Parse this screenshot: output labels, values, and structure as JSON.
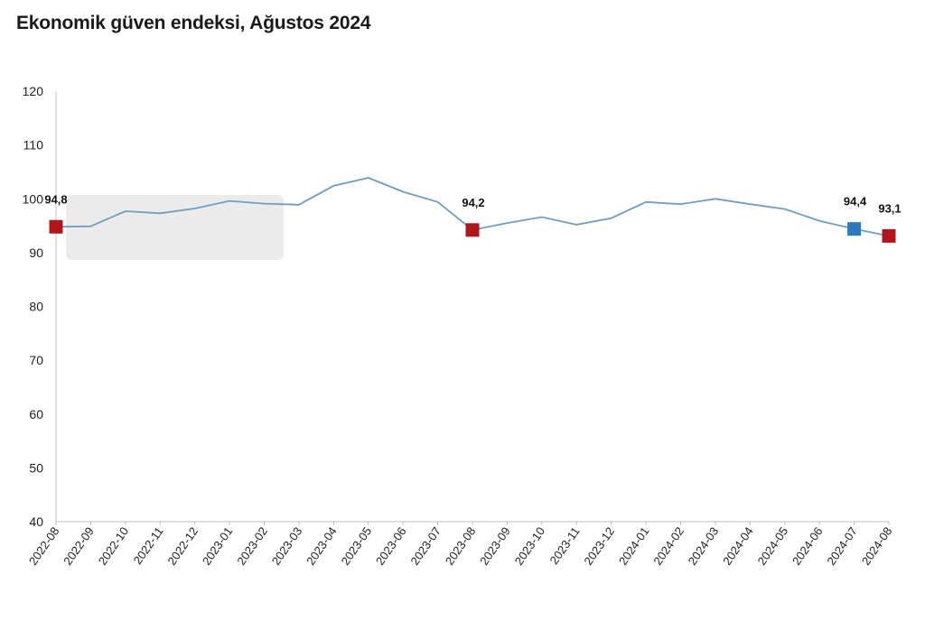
{
  "chart_data": {
    "type": "line",
    "title": "Ekonomik güven endeksi, Ağustos 2024",
    "xlabel": "",
    "ylabel": "",
    "ylim": [
      40,
      120
    ],
    "yticks": [
      40,
      50,
      60,
      70,
      80,
      90,
      100,
      110,
      120
    ],
    "grid": false,
    "legend": "none",
    "categories": [
      "2022-08",
      "2022-09",
      "2022-10",
      "2022-11",
      "2022-12",
      "2023-01",
      "2023-02",
      "2023-03",
      "2023-04",
      "2023-05",
      "2023-06",
      "2023-07",
      "2023-08",
      "2023-09",
      "2023-10",
      "2023-11",
      "2023-12",
      "2024-01",
      "2024-02",
      "2024-03",
      "2024-04",
      "2024-05",
      "2024-06",
      "2024-07",
      "2024-08"
    ],
    "series": [
      {
        "values": [
          94.8,
          94.9,
          97.7,
          97.3,
          98.2,
          99.6,
          99.1,
          98.9,
          102.4,
          103.9,
          101.3,
          99.4,
          94.2,
          95.5,
          96.6,
          95.2,
          96.4,
          99.4,
          99.0,
          100.0,
          99.0,
          98.1,
          95.9,
          94.4,
          93.1
        ],
        "color": "#6f9ec0"
      }
    ],
    "highlights": [
      {
        "index": 0,
        "label": "94,8",
        "color": "#b0161e"
      },
      {
        "index": 12,
        "label": "94,2",
        "color": "#b0161e"
      },
      {
        "index": 23,
        "label": "94,4",
        "color": "#2e79b9"
      },
      {
        "index": 24,
        "label": "93,1",
        "color": "#b0161e"
      }
    ],
    "overlay_box_color": "#e9e9e9"
  }
}
